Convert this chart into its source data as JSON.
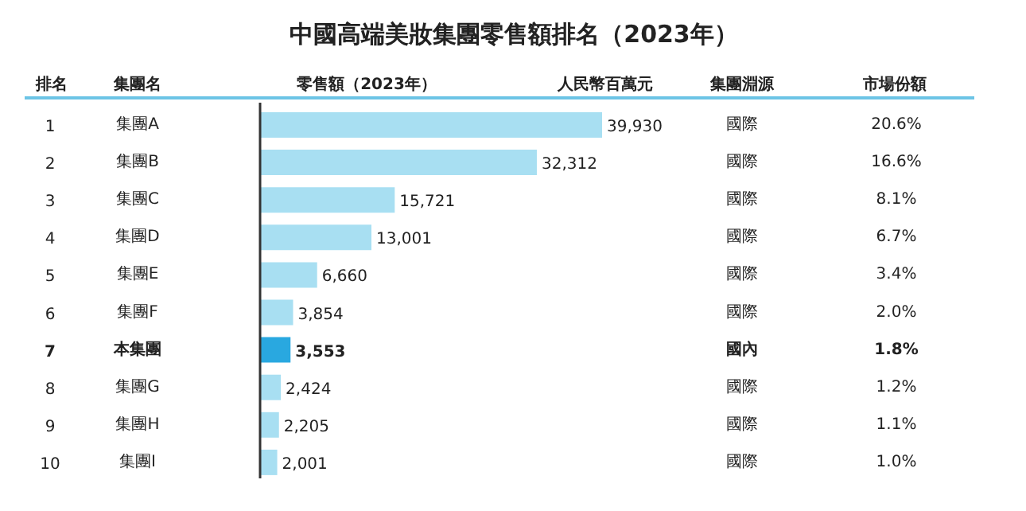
{
  "chart_data": {
    "type": "bar",
    "orientation": "horizontal",
    "title": "中國高端美妝集團零售額排名（2023年）",
    "categories": [
      "集團A",
      "集團B",
      "集團C",
      "集團D",
      "集團E",
      "集團F",
      "本集團",
      "集團G",
      "集團H",
      "集團I"
    ],
    "values": [
      39930,
      32312,
      15721,
      13001,
      6660,
      3854,
      3553,
      2424,
      2205,
      2001
    ],
    "value_labels": [
      "39,930",
      "32,312",
      "15,721",
      "13,001",
      "6,660",
      "3,854",
      "3,553",
      "2,424",
      "2,205",
      "2,001"
    ],
    "colors": [
      "#a8dff2",
      "#a8dff2",
      "#a8dff2",
      "#a8dff2",
      "#a8dff2",
      "#a8dff2",
      "#29a8e0",
      "#a8dff2",
      "#a8dff2",
      "#a8dff2"
    ],
    "annotations": [
      "排名",
      "集團名",
      "零售額（2023年）",
      "人民幣百萬元",
      "集團淵源",
      "市場份額",
      "1",
      "國際",
      "20.6%",
      "2",
      "國際",
      "16.6%",
      "3",
      "國際",
      "8.1%",
      "4",
      "國際",
      "6.7%",
      "5",
      "國際",
      "3.4%",
      "6",
      "國際",
      "2.0%",
      "7",
      "國內",
      "1.8%",
      "8",
      "國際",
      "1.2%",
      "9",
      "國際",
      "1.1%",
      "10",
      "國際",
      "1.0%"
    ]
  }
}
